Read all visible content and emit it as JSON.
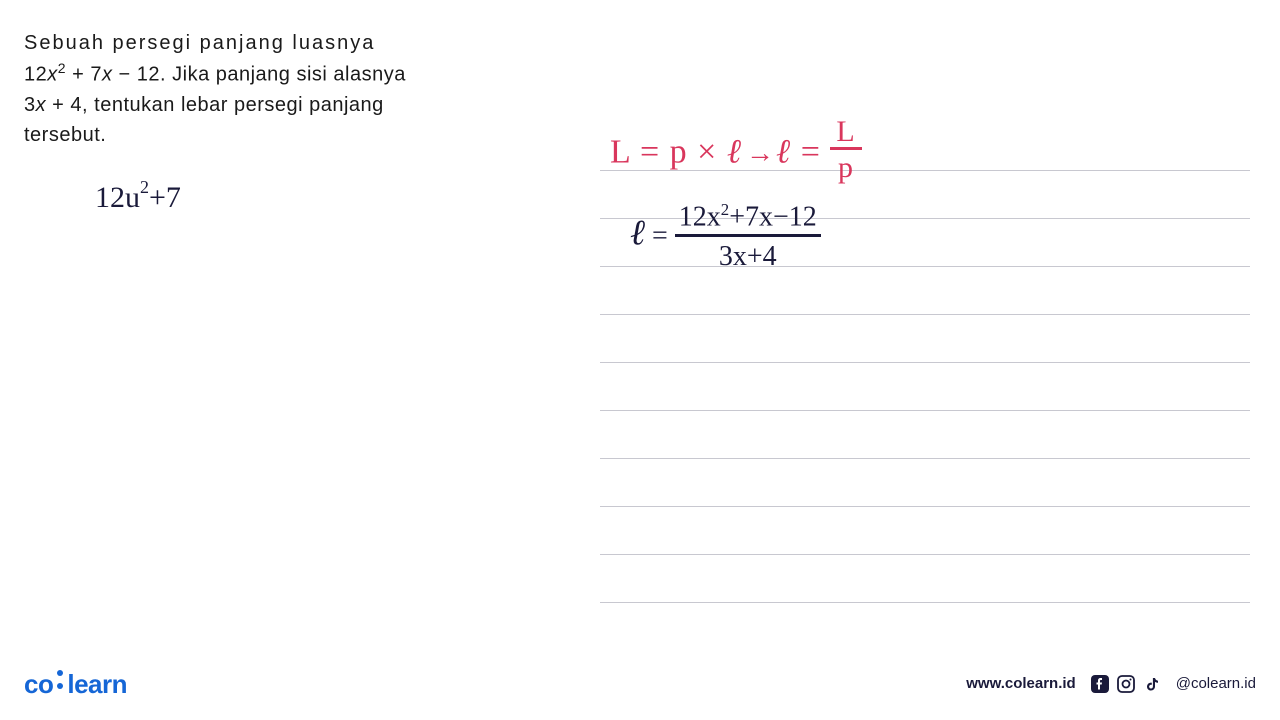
{
  "problem": {
    "line1": "Sebuah persegi panjang luasnya",
    "line2_prefix": "12",
    "line2_var1": "x",
    "line2_exp": "2",
    "line2_mid": " + 7",
    "line2_var2": "x",
    "line2_suffix": " − 12. Jika panjang sisi alasnya",
    "line3_prefix": "3",
    "line3_var": "x",
    "line3_suffix": " + 4, tentukan lebar persegi panjang",
    "line4": "tersebut."
  },
  "handwriting_left": {
    "text_before": "12u",
    "exp": "2",
    "text_after": "+7"
  },
  "formula_red": {
    "part1": "L = p × ",
    "ell1": "ℓ",
    "arrow": " → ",
    "ell2": "ℓ",
    "part2": " = ",
    "frac_top": "L",
    "frac_bot": "p"
  },
  "handwriting_right": {
    "ell": "ℓ",
    "eq": " = ",
    "num_before": "12x",
    "num_exp": "2",
    "num_after": "+7x−12",
    "denom": "3x+4"
  },
  "ruled_lines": {
    "count": 10,
    "start_y": 0,
    "spacing": 48,
    "color": "#c8c8d0"
  },
  "footer": {
    "logo_part1": "co",
    "logo_part2": "learn",
    "website": "www.colearn.id",
    "handle": "@colearn.id"
  },
  "colors": {
    "text": "#1a1a1a",
    "handwriting": "#1a1a3a",
    "red": "#d9365c",
    "logo": "#1566d6",
    "background": "#ffffff",
    "ruled": "#c8c8d0"
  }
}
